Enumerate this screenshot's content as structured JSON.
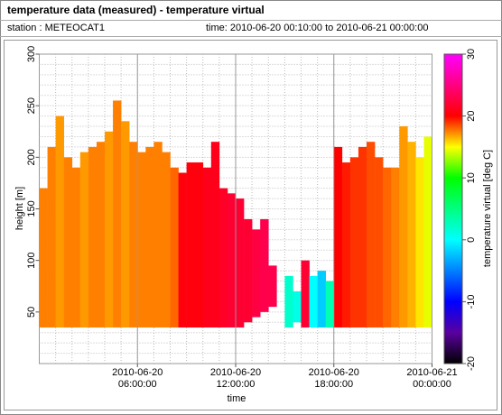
{
  "header": {
    "title": "temperature data (measured) - temperature virtual",
    "station": "station : METEOCAT1",
    "time_range": "time: 2010-06-20 00:10:00 to 2010-06-21 00:00:00"
  },
  "chart_data": {
    "type": "heatmap-columns",
    "xlabel": "time",
    "ylabel": "height [m]",
    "colorbar_label": "temperature virtual [deg C]",
    "column_width": 0.5,
    "x": [
      0,
      0.5,
      1,
      1.5,
      2,
      2.5,
      3,
      3.5,
      4,
      4.5,
      5,
      5.5,
      6,
      6.5,
      7,
      7.5,
      8,
      8.5,
      9,
      9.5,
      10,
      10.5,
      11,
      11.5,
      12,
      12.5,
      13,
      13.5,
      14,
      15,
      15.5,
      16,
      16.5,
      17,
      17.5,
      18,
      18.5,
      19,
      19.5,
      20,
      20.5,
      21,
      21.5,
      22,
      22.5,
      23,
      23.5
    ],
    "bottom": [
      35,
      35,
      35,
      35,
      35,
      35,
      35,
      35,
      35,
      35,
      35,
      35,
      35,
      35,
      35,
      35,
      35,
      35,
      35,
      35,
      35,
      35,
      35,
      35,
      35,
      40,
      45,
      50,
      55,
      35,
      40,
      35,
      35,
      35,
      35,
      35,
      35,
      35,
      35,
      35,
      35,
      35,
      35,
      35,
      35,
      35,
      35
    ],
    "top": [
      170,
      210,
      240,
      200,
      190,
      205,
      210,
      215,
      225,
      255,
      235,
      215,
      205,
      210,
      215,
      205,
      190,
      185,
      195,
      195,
      190,
      215,
      170,
      165,
      160,
      140,
      130,
      140,
      95,
      85,
      70,
      100,
      85,
      90,
      80,
      210,
      195,
      200,
      210,
      215,
      200,
      190,
      190,
      230,
      215,
      200,
      220
    ],
    "values": [
      17.5,
      17.5,
      17,
      17.5,
      17.5,
      17,
      17.5,
      17.5,
      17,
      17.5,
      17,
      17.5,
      17.5,
      17.5,
      17.5,
      17.5,
      18,
      20.5,
      20.5,
      20.5,
      21,
      21,
      21.5,
      22,
      22,
      22,
      22.5,
      23,
      23,
      2,
      1,
      22,
      0,
      -2,
      3,
      20,
      19.5,
      19,
      19,
      18.5,
      18.5,
      18,
      17.5,
      17,
      16.5,
      15.5,
      14.5
    ],
    "xlim": [
      0,
      24
    ],
    "xticks": [
      {
        "value": 6,
        "label": "2010-06-20 06:00:00"
      },
      {
        "value": 12,
        "label": "2010-06-20 12:00:00"
      },
      {
        "value": 18,
        "label": "2010-06-20 18:00:00"
      },
      {
        "value": 24,
        "label": "2010-06-21 00:00:00"
      }
    ],
    "ylim": [
      0,
      300
    ],
    "yticks": [
      50,
      100,
      150,
      200,
      250,
      300
    ],
    "clim": [
      -20,
      30
    ],
    "cticks": [
      -20,
      -10,
      0,
      10,
      20,
      30
    ],
    "colorscale": [
      [
        -20,
        "#000000"
      ],
      [
        -15,
        "#5a00a0"
      ],
      [
        -10,
        "#0000ff"
      ],
      [
        -5,
        "#0080ff"
      ],
      [
        0,
        "#00ffff"
      ],
      [
        5,
        "#00ff80"
      ],
      [
        10,
        "#00ff00"
      ],
      [
        15,
        "#ffff00"
      ],
      [
        20,
        "#ff0000"
      ],
      [
        25,
        "#ff0080"
      ],
      [
        30,
        "#ff00ff"
      ]
    ],
    "x_minor_step": 1,
    "y_minor_step": 10,
    "grid": true
  }
}
